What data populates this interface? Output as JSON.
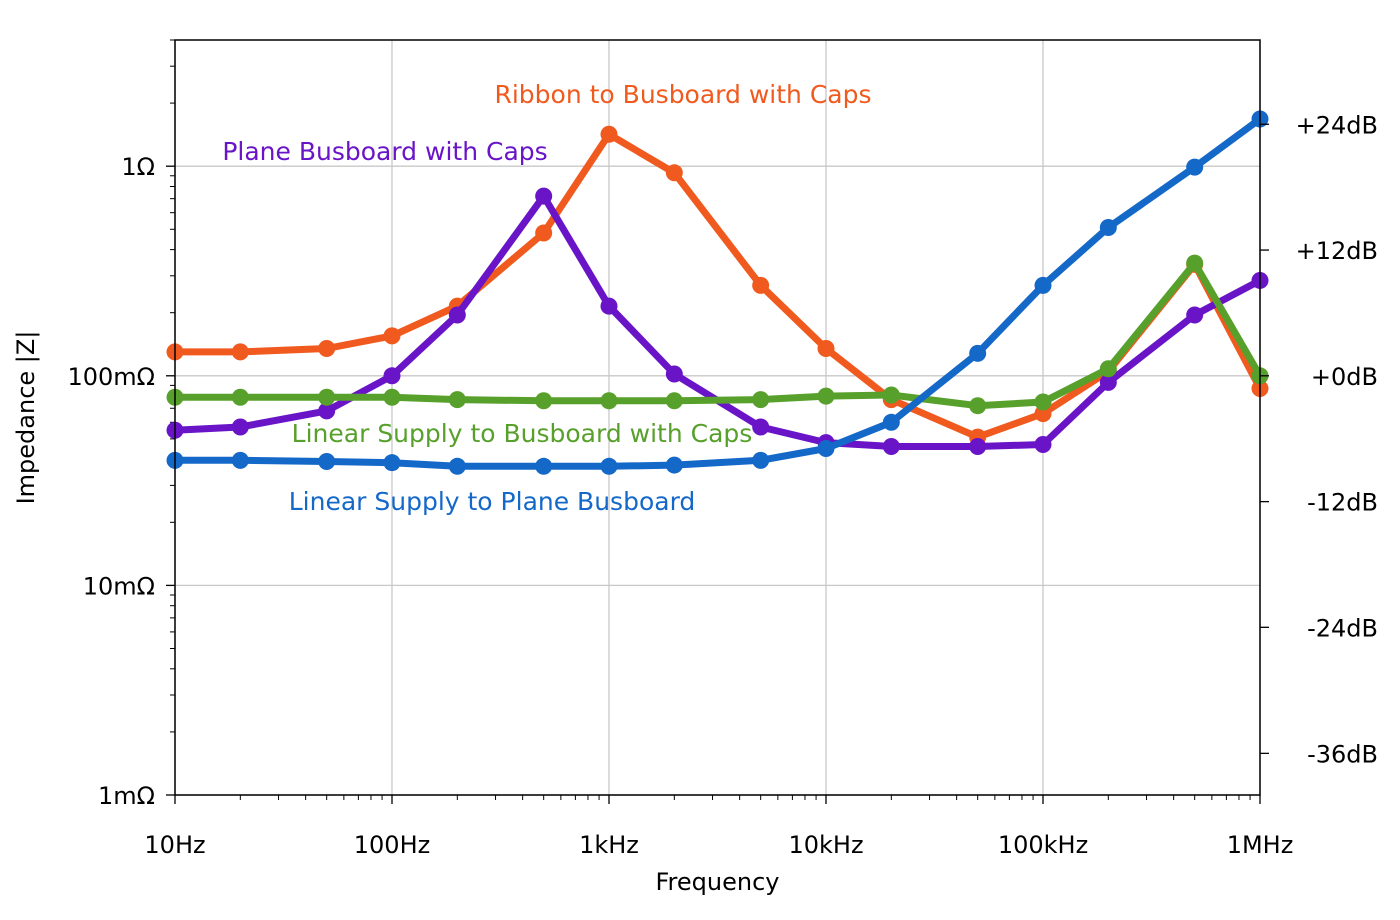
{
  "chart_data": {
    "type": "line",
    "x_scale": "log",
    "y_scale": "log",
    "xlabel": "Frequency",
    "ylabel": "Impedance |Z|",
    "xlim": [
      10,
      1000000
    ],
    "ylim": [
      0.001,
      4
    ],
    "grid": true,
    "x_ticks": [
      {
        "value": 10,
        "label": "10Hz"
      },
      {
        "value": 100,
        "label": "100Hz"
      },
      {
        "value": 1000,
        "label": "1kHz"
      },
      {
        "value": 10000,
        "label": "10kHz"
      },
      {
        "value": 100000,
        "label": "100kHz"
      },
      {
        "value": 1000000,
        "label": "1MHz"
      }
    ],
    "y_ticks": [
      {
        "value": 0.001,
        "label": "1mΩ"
      },
      {
        "value": 0.01,
        "label": "10mΩ"
      },
      {
        "value": 0.1,
        "label": "100mΩ"
      },
      {
        "value": 1,
        "label": "1Ω"
      }
    ],
    "secondary_y_ticks": [
      {
        "value": 1.585,
        "label": "+24dB"
      },
      {
        "value": 0.398,
        "label": "+12dB"
      },
      {
        "value": 0.1,
        "label": "+0dB"
      },
      {
        "value": 0.0251,
        "label": "-12dB"
      },
      {
        "value": 0.00631,
        "label": "-24dB"
      },
      {
        "value": 0.00158,
        "label": "-36dB"
      }
    ],
    "x": [
      10,
      20,
      50,
      100,
      200,
      500,
      1000,
      2000,
      5000,
      10000,
      20000,
      50000,
      100000,
      200000,
      500000,
      1000000
    ],
    "series": [
      {
        "name": "Ribbon to Busboard with Caps",
        "color": "#f05a1e",
        "values": [
          0.13,
          0.13,
          0.135,
          0.155,
          0.215,
          0.48,
          1.42,
          0.93,
          0.27,
          0.135,
          0.077,
          0.051,
          0.066,
          0.105,
          0.34,
          0.087
        ]
      },
      {
        "name": "Plane Busboard with Caps",
        "color": "#6a14c8",
        "values": [
          0.055,
          0.057,
          0.068,
          0.1,
          0.195,
          0.72,
          0.215,
          0.102,
          0.057,
          0.048,
          0.046,
          0.046,
          0.047,
          0.093,
          0.195,
          0.285
        ]
      },
      {
        "name": "Linear Supply to Busboard with Caps",
        "color": "#58a02c",
        "values": [
          0.079,
          0.079,
          0.079,
          0.079,
          0.077,
          0.076,
          0.076,
          0.076,
          0.077,
          0.08,
          0.081,
          0.072,
          0.075,
          0.108,
          0.345,
          0.1
        ]
      },
      {
        "name": "Linear Supply to Plane Busboard",
        "color": "#1468c8",
        "values": [
          0.0395,
          0.0395,
          0.039,
          0.0385,
          0.037,
          0.037,
          0.037,
          0.0375,
          0.0395,
          0.045,
          0.06,
          0.128,
          0.27,
          0.51,
          0.99,
          1.68
        ]
      }
    ]
  }
}
